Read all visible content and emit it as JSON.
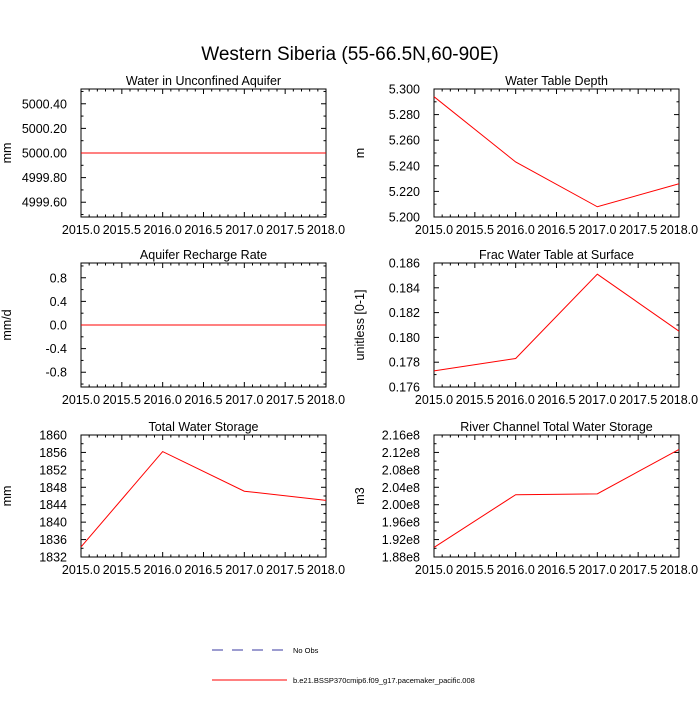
{
  "title": "Western Siberia (55-66.5N,60-90E)",
  "legend": {
    "placement": "bottom-center",
    "entries": [
      {
        "label": "No Obs",
        "style": "dashed",
        "color": "#3a3aa0"
      },
      {
        "label": "b.e21.BSSP370cmip6.f09_g17.pacemaker_pacific.008",
        "style": "solid",
        "color": "#ff0000"
      }
    ]
  },
  "chart_data": [
    {
      "type": "line",
      "title": "Water in Unconfined Aquifer",
      "ylabel": "mm",
      "x": [
        2015.0,
        2016.0,
        2017.0,
        2018.0
      ],
      "xlim": [
        2015.0,
        2018.0
      ],
      "xticks": [
        2015.0,
        2015.5,
        2016.0,
        2016.5,
        2017.0,
        2017.5,
        2018.0
      ],
      "xtick_labels": [
        "2015.0",
        "2015.5",
        "2016.0",
        "2016.5",
        "2017.0",
        "2017.5",
        "2018.0"
      ],
      "ylim": [
        4999.48,
        5000.52
      ],
      "yticks": [
        4999.6,
        4999.8,
        5000.0,
        5000.2,
        5000.4
      ],
      "ytick_labels": [
        "4999.60",
        "4999.80",
        "5000.00",
        "5000.20",
        "5000.40"
      ],
      "series": [
        {
          "color": "#ff0000",
          "values": [
            5000.0,
            5000.0,
            5000.0,
            5000.0
          ]
        }
      ]
    },
    {
      "type": "line",
      "title": "Water Table Depth",
      "ylabel": "m",
      "x": [
        2015.0,
        2016.0,
        2017.0,
        2018.0
      ],
      "xlim": [
        2015.0,
        2018.0
      ],
      "xticks": [
        2015.0,
        2015.5,
        2016.0,
        2016.5,
        2017.0,
        2017.5,
        2018.0
      ],
      "xtick_labels": [
        "2015.0",
        "2015.5",
        "2016.0",
        "2016.5",
        "2017.0",
        "2017.5",
        "2018.0"
      ],
      "ylim": [
        5.2,
        5.3
      ],
      "yticks": [
        5.2,
        5.22,
        5.24,
        5.26,
        5.28,
        5.3
      ],
      "ytick_labels": [
        "5.200",
        "5.220",
        "5.240",
        "5.260",
        "5.280",
        "5.300"
      ],
      "series": [
        {
          "color": "#ff0000",
          "values": [
            5.294,
            5.243,
            5.208,
            5.226
          ]
        }
      ]
    },
    {
      "type": "line",
      "title": "Aquifer Recharge Rate",
      "ylabel": "mm/d",
      "x": [
        2015.0,
        2016.0,
        2017.0,
        2018.0
      ],
      "xlim": [
        2015.0,
        2018.0
      ],
      "xticks": [
        2015.0,
        2015.5,
        2016.0,
        2016.5,
        2017.0,
        2017.5,
        2018.0
      ],
      "xtick_labels": [
        "2015.0",
        "2015.5",
        "2016.0",
        "2016.5",
        "2017.0",
        "2017.5",
        "2018.0"
      ],
      "ylim": [
        -1.05,
        1.05
      ],
      "yticks": [
        -0.8,
        -0.4,
        0.0,
        0.4,
        0.8
      ],
      "ytick_labels": [
        "-0.8",
        "-0.4",
        "0.0",
        "0.4",
        "0.8"
      ],
      "series": [
        {
          "color": "#ff0000",
          "values": [
            0.0,
            0.0,
            0.0,
            0.0
          ]
        }
      ]
    },
    {
      "type": "line",
      "title": "Frac Water Table at Surface",
      "ylabel": "unitless [0-1]",
      "x": [
        2015.0,
        2016.0,
        2017.0,
        2018.0
      ],
      "xlim": [
        2015.0,
        2018.0
      ],
      "xticks": [
        2015.0,
        2015.5,
        2016.0,
        2016.5,
        2017.0,
        2017.5,
        2018.0
      ],
      "xtick_labels": [
        "2015.0",
        "2015.5",
        "2016.0",
        "2016.5",
        "2017.0",
        "2017.5",
        "2018.0"
      ],
      "ylim": [
        0.176,
        0.186
      ],
      "yticks": [
        0.176,
        0.178,
        0.18,
        0.182,
        0.184,
        0.186
      ],
      "ytick_labels": [
        "0.176",
        "0.178",
        "0.180",
        "0.182",
        "0.184",
        "0.186"
      ],
      "series": [
        {
          "color": "#ff0000",
          "values": [
            0.1773,
            0.1783,
            0.1851,
            0.1805
          ]
        }
      ]
    },
    {
      "type": "line",
      "title": "Total Water Storage",
      "ylabel": "mm",
      "x": [
        2015.0,
        2016.0,
        2017.0,
        2018.0
      ],
      "xlim": [
        2015.0,
        2018.0
      ],
      "xticks": [
        2015.0,
        2015.5,
        2016.0,
        2016.5,
        2017.0,
        2017.5,
        2018.0
      ],
      "xtick_labels": [
        "2015.0",
        "2015.5",
        "2016.0",
        "2016.5",
        "2017.0",
        "2017.5",
        "2018.0"
      ],
      "ylim": [
        1832,
        1860
      ],
      "yticks": [
        1832,
        1836,
        1840,
        1844,
        1848,
        1852,
        1856,
        1860
      ],
      "ytick_labels": [
        "1832",
        "1836",
        "1840",
        "1844",
        "1848",
        "1852",
        "1856",
        "1860"
      ],
      "series": [
        {
          "color": "#ff0000",
          "values": [
            1834.3,
            1856.2,
            1847.1,
            1845.0
          ]
        }
      ]
    },
    {
      "type": "line",
      "title": "River Channel Total Water Storage",
      "ylabel": "m3",
      "x": [
        2015.0,
        2016.0,
        2017.0,
        2018.0
      ],
      "xlim": [
        2015.0,
        2018.0
      ],
      "xticks": [
        2015.0,
        2015.5,
        2016.0,
        2016.5,
        2017.0,
        2017.5,
        2018.0
      ],
      "xtick_labels": [
        "2015.0",
        "2015.5",
        "2016.0",
        "2016.5",
        "2017.0",
        "2017.5",
        "2018.0"
      ],
      "ylim": [
        188000000,
        216000000
      ],
      "yticks": [
        188000000,
        192000000,
        196000000,
        200000000,
        204000000,
        208000000,
        212000000,
        216000000
      ],
      "ytick_labels": [
        "1.88e8",
        "1.92e8",
        "1.96e8",
        "2.00e8",
        "2.04e8",
        "2.08e8",
        "2.12e8",
        "2.16e8"
      ],
      "series": [
        {
          "color": "#ff0000",
          "values": [
            190200000,
            202300000,
            202500000,
            212700000
          ]
        }
      ]
    }
  ]
}
